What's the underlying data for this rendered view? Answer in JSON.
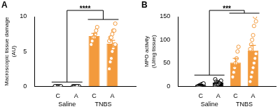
{
  "chart_data": [
    {
      "type": "bar",
      "title": "A",
      "y_label": "Macroscopic tissue damage (AU)",
      "categories": [
        "C",
        "A",
        "C",
        "A"
      ],
      "group_labels": [
        "Saline",
        "Saline",
        "TNBS",
        "TNBS"
      ],
      "values": [
        0,
        0,
        7.2,
        6.1
      ],
      "errors": [
        0,
        0,
        0.4,
        0.5
      ],
      "points": [
        [
          0,
          0,
          0,
          0,
          0,
          0,
          0,
          0
        ],
        [
          0,
          0,
          0,
          0,
          0,
          0,
          0,
          0,
          0,
          0,
          0,
          0
        ],
        [
          6,
          6.5,
          7,
          7,
          7.5,
          8,
          8.5
        ],
        [
          2.5,
          3.5,
          4,
          5,
          5.5,
          6,
          6,
          6.5,
          7,
          7,
          7.5,
          8,
          8,
          9
        ]
      ],
      "colors": [
        "#000000",
        "#000000",
        "#f39a3c",
        "#f39a3c"
      ],
      "marker": "circle",
      "ylim": [
        0,
        10
      ],
      "yticks": [
        0,
        5,
        10
      ],
      "grid": false,
      "annotations": [
        {
          "text": "****",
          "between": [
            "Saline",
            "TNBS"
          ]
        }
      ]
    },
    {
      "type": "bar",
      "title": "B",
      "y_label": "MPO activity (U/mg tissue)",
      "categories": [
        "C",
        "A",
        "C",
        "A"
      ],
      "group_labels": [
        "Saline",
        "Saline",
        "TNBS",
        "TNBS"
      ],
      "values": [
        3,
        7.7,
        51,
        77
      ],
      "errors": [
        1,
        1.5,
        9,
        11
      ],
      "points": [
        [
          0,
          1,
          2,
          3,
          4,
          5,
          6
        ],
        [
          2,
          4,
          5,
          6,
          8,
          10,
          12,
          15,
          10,
          8,
          5,
          7
        ],
        [
          20,
          30,
          40,
          50,
          60,
          75,
          85
        ],
        [
          10,
          20,
          30,
          40,
          50,
          60,
          70,
          80,
          90,
          100,
          110,
          130,
          150,
          140
        ]
      ],
      "colors": [
        "#000000",
        "#000000",
        "#f39a3c",
        "#f39a3c"
      ],
      "marker": "circle",
      "ylim": [
        0,
        150
      ],
      "yticks": [
        0,
        50,
        100,
        150
      ],
      "grid": false,
      "annotations": [
        {
          "text": "***",
          "between": [
            "Saline",
            "TNBS"
          ]
        }
      ]
    }
  ]
}
